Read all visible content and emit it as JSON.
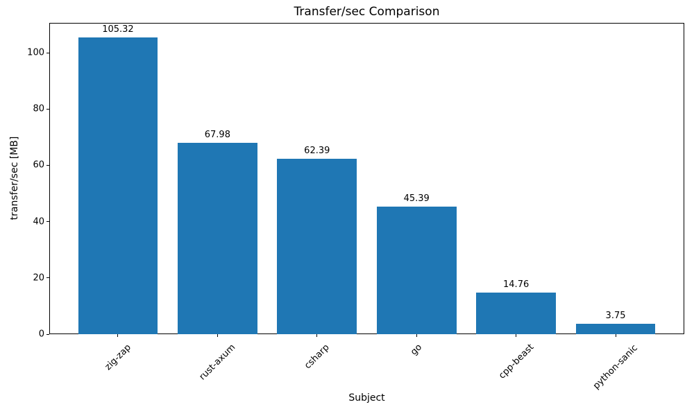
{
  "chart_data": {
    "type": "bar",
    "title": "Transfer/sec Comparison",
    "xlabel": "Subject",
    "ylabel": "transfer/sec [MB]",
    "categories": [
      "zig-zap",
      "rust-axum",
      "csharp",
      "go",
      "cpp-beast",
      "python-sanic"
    ],
    "values": [
      105.32,
      67.98,
      62.39,
      45.39,
      14.76,
      3.75
    ],
    "value_labels": [
      "105.32",
      "67.98",
      "62.39",
      "45.39",
      "14.76",
      "3.75"
    ],
    "yticks": [
      0,
      20,
      40,
      60,
      80,
      100
    ],
    "ytick_labels": [
      "0",
      "20",
      "40",
      "60",
      "80",
      "100"
    ],
    "ylim": [
      0,
      110.6
    ],
    "bar_color": "#1f77b4",
    "axis_color": "#000000",
    "background_color": "#ffffff",
    "grid": false,
    "legend_position": "none",
    "bar_width_fraction": 0.8,
    "x_margin_fraction": 0.05
  }
}
